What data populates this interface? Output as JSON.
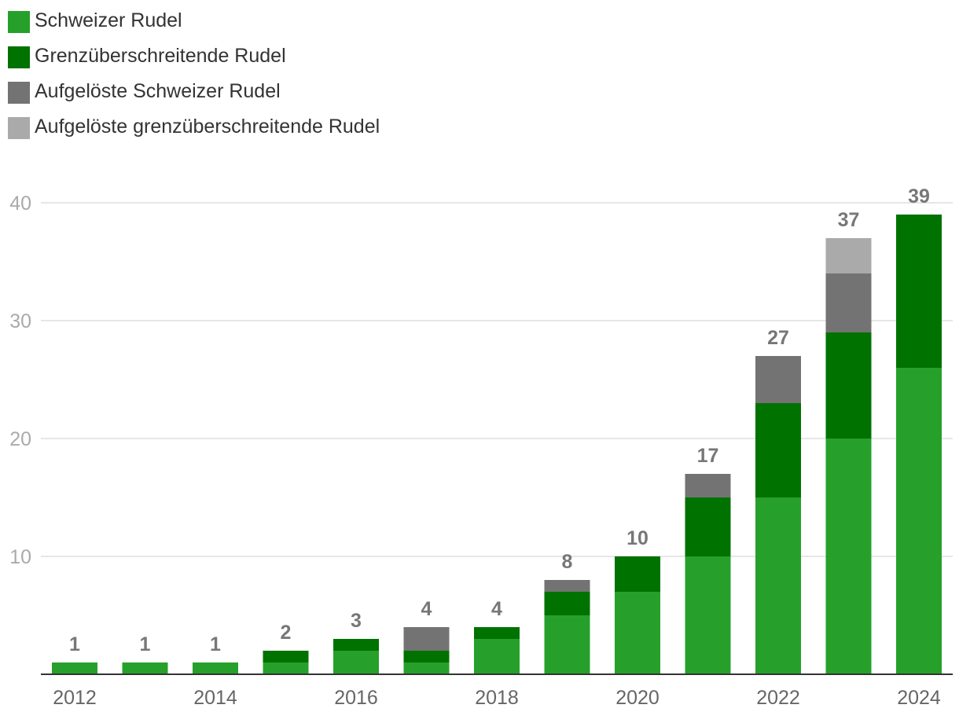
{
  "chart_data": {
    "type": "bar",
    "stacked": true,
    "title": "",
    "xlabel": "",
    "ylabel": "",
    "categories": [
      "2012",
      "2013",
      "2014",
      "2015",
      "2016",
      "2017",
      "2018",
      "2019",
      "2020",
      "2021",
      "2022",
      "2023",
      "2024"
    ],
    "x_tick_labels": [
      "2012",
      "2014",
      "2016",
      "2018",
      "2020",
      "2022",
      "2024"
    ],
    "y_ticks": [
      10,
      20,
      30,
      40
    ],
    "ylim": [
      0,
      40
    ],
    "grid": true,
    "legend_position": "top-left",
    "series": [
      {
        "name": "Schweizer Rudel",
        "color": "#26a02a",
        "values": [
          1,
          1,
          1,
          1,
          2,
          1,
          3,
          5,
          7,
          10,
          15,
          20,
          26
        ]
      },
      {
        "name": "Grenzüberschreitende Rudel",
        "color": "#007200",
        "values": [
          0,
          0,
          0,
          1,
          1,
          1,
          1,
          2,
          3,
          5,
          8,
          9,
          13
        ]
      },
      {
        "name": "Aufgelöste Schweizer Rudel",
        "color": "#737373",
        "values": [
          0,
          0,
          0,
          0,
          0,
          2,
          0,
          1,
          0,
          2,
          4,
          5,
          0
        ]
      },
      {
        "name": "Aufgelöste grenzüberschreitende Rudel",
        "color": "#aaaaaa",
        "values": [
          0,
          0,
          0,
          0,
          0,
          0,
          0,
          0,
          0,
          0,
          0,
          3,
          0
        ]
      }
    ],
    "totals": [
      1,
      1,
      1,
      2,
      3,
      4,
      4,
      8,
      10,
      17,
      27,
      37,
      39
    ]
  },
  "colors": {
    "grid": "#dddddd",
    "axis": "#333333",
    "tick_label": "#aaaaaa",
    "x_tick_label": "#666666",
    "total_label": "#777777"
  }
}
